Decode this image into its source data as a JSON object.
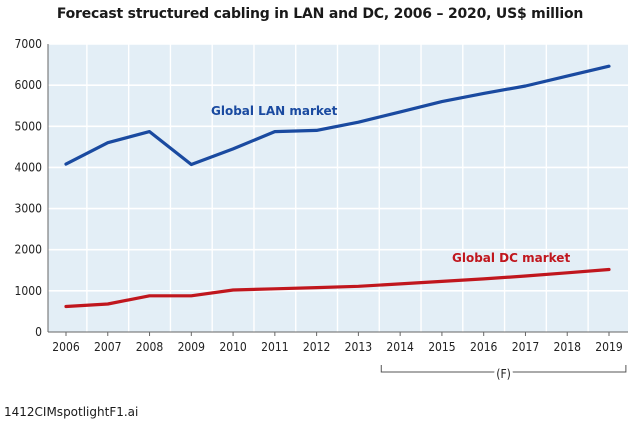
{
  "colors": {
    "plot_background": "#e3eef6",
    "gridline": "#ffffff",
    "axis": "#666666",
    "lan_series": "#1a4aa0",
    "dc_series": "#c0161d"
  },
  "chart_data": {
    "type": "line",
    "title": "Forecast structured cabling in LAN and DC, 2006 – 2020, US$ million",
    "xlabel": "",
    "ylabel": "",
    "categories": [
      "2006",
      "2007",
      "2008",
      "2009",
      "2010",
      "2011",
      "2012",
      "2013",
      "2014",
      "2015",
      "2016",
      "2017",
      "2018",
      "2019"
    ],
    "yticks": [
      "0",
      "1000",
      "2000",
      "3000",
      "4000",
      "5000",
      "6000",
      "7000"
    ],
    "ylim": [
      0,
      7000
    ],
    "grid": true,
    "forecast_marker": "(F)",
    "forecast_range": [
      "2014",
      "2019"
    ],
    "series": [
      {
        "name": "Global LAN market",
        "color": "#1a4aa0",
        "values": [
          4080,
          4600,
          4870,
          4070,
          4450,
          4870,
          4900,
          5100,
          5350,
          5600,
          5800,
          5980,
          6220,
          6460
        ]
      },
      {
        "name": "Global DC market",
        "color": "#c0161d",
        "values": [
          620,
          680,
          880,
          880,
          1020,
          1050,
          1080,
          1110,
          1170,
          1230,
          1290,
          1360,
          1440,
          1520
        ]
      }
    ]
  },
  "footer": {
    "file_label": "1412CIMspotlightF1.ai"
  }
}
